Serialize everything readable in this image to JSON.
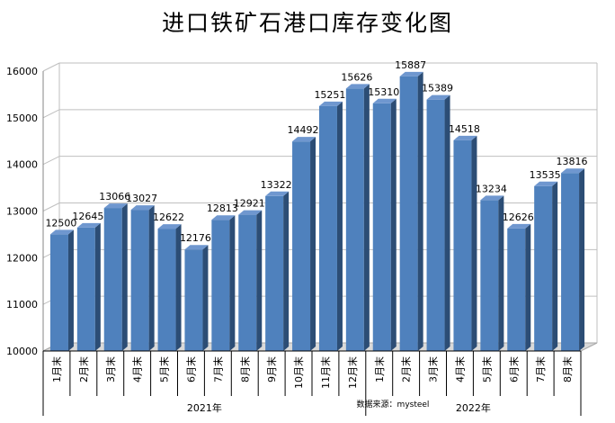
{
  "chart_data": {
    "type": "bar",
    "title": "进口铁矿石港口库存变化图",
    "categories": [
      "1月末",
      "2月末",
      "3月末",
      "4月末",
      "5月末",
      "6月末",
      "7月末",
      "8月末",
      "9月末",
      "10月末",
      "11月末",
      "12月末",
      "1月末",
      "2月末",
      "3月末",
      "4月末",
      "5月末",
      "6月末",
      "7月末",
      "8月末"
    ],
    "values": [
      12500,
      12645,
      13066,
      13027,
      12622,
      12176,
      12813,
      12921,
      13322,
      14492,
      15251,
      15626,
      15310,
      15887,
      15389,
      14518,
      13234,
      12626,
      13535,
      13816
    ],
    "year_groups": [
      {
        "label": "2021年",
        "count": 12
      },
      {
        "label": "2022年",
        "count": 8
      }
    ],
    "source_note": "数据来源：mysteel",
    "ylim": [
      10000,
      16000
    ],
    "yticks": [
      10000,
      11000,
      12000,
      13000,
      14000,
      15000,
      16000
    ],
    "grid": true,
    "colors": {
      "bar_front": "#4f81bd",
      "bar_side": "#2c4d75",
      "bar_top": "#6f97cf",
      "grid": "#bfbfbf",
      "axis": "#868686"
    }
  }
}
